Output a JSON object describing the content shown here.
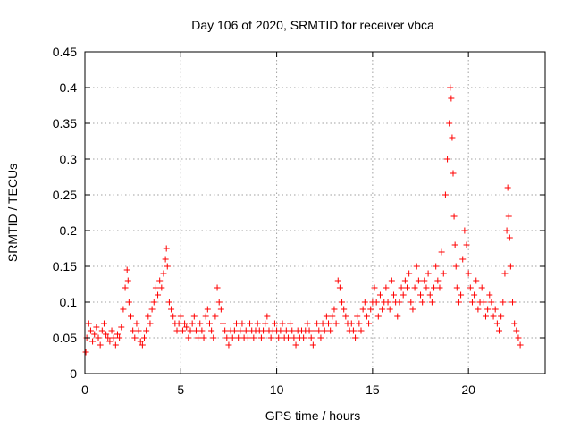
{
  "chart_data": {
    "type": "scatter",
    "title": "Day 106 of 2020, SRMTID for receiver vbca",
    "xlabel": "GPS time / hours",
    "ylabel": "SRMTID / TECUs",
    "xlim": [
      0,
      24
    ],
    "ylim": [
      0,
      0.45
    ],
    "x_ticks": [
      0,
      5,
      10,
      15,
      20
    ],
    "x_tick_labels": [
      "0",
      "5",
      "10",
      "15",
      "20"
    ],
    "y_ticks": [
      0,
      0.05,
      0.1,
      0.15,
      0.2,
      0.25,
      0.3,
      0.35,
      0.4,
      0.45
    ],
    "y_tick_labels": [
      "0",
      "0.05",
      "0.1",
      "0.15",
      "0.2",
      "0.25",
      "0.3",
      "0.35",
      "0.4",
      "0.45"
    ],
    "grid": true,
    "marker": "+",
    "color": "#ff0000",
    "series": [
      {
        "name": "SRMTID",
        "x": [
          0.05,
          0.1,
          0.2,
          0.3,
          0.4,
          0.5,
          0.6,
          0.7,
          0.8,
          0.9,
          1.0,
          1.1,
          1.2,
          1.3,
          1.4,
          1.5,
          1.6,
          1.7,
          1.8,
          1.9,
          2.0,
          2.1,
          2.2,
          2.25,
          2.3,
          2.4,
          2.5,
          2.6,
          2.7,
          2.8,
          2.9,
          3.0,
          3.1,
          3.2,
          3.3,
          3.4,
          3.5,
          3.6,
          3.7,
          3.8,
          3.9,
          4.0,
          4.1,
          4.2,
          4.25,
          4.3,
          4.4,
          4.5,
          4.6,
          4.7,
          4.8,
          4.9,
          5.0,
          5.1,
          5.2,
          5.3,
          5.4,
          5.5,
          5.6,
          5.7,
          5.8,
          5.9,
          6.0,
          6.1,
          6.2,
          6.3,
          6.4,
          6.5,
          6.6,
          6.7,
          6.8,
          6.9,
          7.0,
          7.1,
          7.2,
          7.3,
          7.4,
          7.5,
          7.6,
          7.7,
          7.8,
          7.9,
          8.0,
          8.1,
          8.2,
          8.3,
          8.4,
          8.5,
          8.6,
          8.7,
          8.8,
          8.9,
          9.0,
          9.1,
          9.2,
          9.3,
          9.4,
          9.5,
          9.6,
          9.7,
          9.8,
          9.9,
          10.0,
          10.1,
          10.2,
          10.3,
          10.4,
          10.5,
          10.6,
          10.7,
          10.8,
          10.9,
          11.0,
          11.1,
          11.2,
          11.3,
          11.4,
          11.5,
          11.6,
          11.7,
          11.8,
          11.9,
          12.0,
          12.1,
          12.2,
          12.3,
          12.4,
          12.5,
          12.6,
          12.7,
          12.8,
          12.9,
          13.0,
          13.1,
          13.2,
          13.3,
          13.4,
          13.5,
          13.6,
          13.7,
          13.8,
          13.9,
          14.0,
          14.1,
          14.2,
          14.3,
          14.4,
          14.5,
          14.6,
          14.7,
          14.8,
          14.9,
          15.0,
          15.1,
          15.2,
          15.3,
          15.4,
          15.5,
          15.6,
          15.7,
          15.8,
          15.9,
          16.0,
          16.1,
          16.2,
          16.3,
          16.4,
          16.5,
          16.6,
          16.7,
          16.8,
          16.9,
          17.0,
          17.1,
          17.2,
          17.3,
          17.4,
          17.5,
          17.6,
          17.7,
          17.8,
          17.9,
          18.0,
          18.1,
          18.2,
          18.3,
          18.4,
          18.5,
          18.6,
          18.7,
          18.8,
          18.9,
          19.0,
          19.05,
          19.1,
          19.15,
          19.2,
          19.25,
          19.3,
          19.35,
          19.4,
          19.5,
          19.6,
          19.7,
          19.8,
          19.9,
          20.0,
          20.1,
          20.2,
          20.3,
          20.4,
          20.5,
          20.6,
          20.7,
          20.8,
          20.9,
          21.0,
          21.1,
          21.2,
          21.3,
          21.4,
          21.5,
          21.6,
          21.7,
          21.8,
          21.9,
          22.0,
          22.05,
          22.1,
          22.15,
          22.2,
          22.3,
          22.4,
          22.5,
          22.6,
          22.7
        ],
        "y": [
          0.03,
          0.05,
          0.07,
          0.06,
          0.045,
          0.055,
          0.065,
          0.05,
          0.04,
          0.06,
          0.07,
          0.055,
          0.05,
          0.045,
          0.06,
          0.05,
          0.04,
          0.055,
          0.05,
          0.065,
          0.09,
          0.12,
          0.145,
          0.13,
          0.1,
          0.08,
          0.06,
          0.05,
          0.07,
          0.06,
          0.045,
          0.04,
          0.05,
          0.06,
          0.08,
          0.07,
          0.09,
          0.1,
          0.12,
          0.11,
          0.13,
          0.12,
          0.14,
          0.16,
          0.175,
          0.15,
          0.1,
          0.09,
          0.08,
          0.07,
          0.06,
          0.07,
          0.08,
          0.06,
          0.07,
          0.065,
          0.05,
          0.06,
          0.07,
          0.08,
          0.06,
          0.05,
          0.07,
          0.06,
          0.05,
          0.08,
          0.09,
          0.07,
          0.06,
          0.05,
          0.08,
          0.12,
          0.1,
          0.09,
          0.07,
          0.06,
          0.05,
          0.04,
          0.06,
          0.05,
          0.06,
          0.07,
          0.05,
          0.06,
          0.07,
          0.05,
          0.06,
          0.05,
          0.07,
          0.06,
          0.05,
          0.06,
          0.07,
          0.06,
          0.05,
          0.06,
          0.07,
          0.08,
          0.06,
          0.05,
          0.06,
          0.07,
          0.06,
          0.05,
          0.06,
          0.07,
          0.05,
          0.06,
          0.05,
          0.07,
          0.06,
          0.05,
          0.04,
          0.06,
          0.05,
          0.06,
          0.05,
          0.06,
          0.07,
          0.06,
          0.05,
          0.04,
          0.06,
          0.07,
          0.06,
          0.05,
          0.07,
          0.06,
          0.08,
          0.07,
          0.06,
          0.08,
          0.09,
          0.07,
          0.13,
          0.12,
          0.1,
          0.09,
          0.08,
          0.07,
          0.06,
          0.07,
          0.06,
          0.05,
          0.08,
          0.07,
          0.06,
          0.09,
          0.1,
          0.08,
          0.07,
          0.09,
          0.1,
          0.12,
          0.1,
          0.08,
          0.11,
          0.09,
          0.1,
          0.12,
          0.1,
          0.09,
          0.13,
          0.11,
          0.1,
          0.08,
          0.1,
          0.12,
          0.11,
          0.13,
          0.12,
          0.14,
          0.1,
          0.09,
          0.12,
          0.15,
          0.13,
          0.11,
          0.1,
          0.13,
          0.12,
          0.14,
          0.11,
          0.1,
          0.12,
          0.15,
          0.13,
          0.12,
          0.17,
          0.14,
          0.25,
          0.3,
          0.35,
          0.4,
          0.385,
          0.33,
          0.28,
          0.22,
          0.18,
          0.15,
          0.12,
          0.1,
          0.11,
          0.16,
          0.2,
          0.18,
          0.14,
          0.12,
          0.1,
          0.11,
          0.13,
          0.09,
          0.1,
          0.12,
          0.1,
          0.08,
          0.09,
          0.11,
          0.1,
          0.08,
          0.09,
          0.07,
          0.06,
          0.08,
          0.1,
          0.14,
          0.2,
          0.26,
          0.22,
          0.19,
          0.15,
          0.1,
          0.07,
          0.06,
          0.05,
          0.04
        ]
      }
    ]
  }
}
